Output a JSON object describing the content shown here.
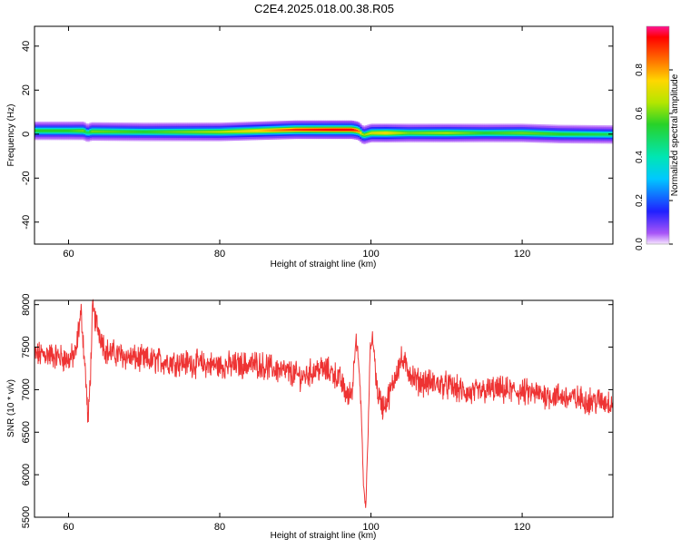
{
  "title": "C2E4.2025.018.00.38.R05",
  "chart_data": [
    {
      "type": "heatmap",
      "xlabel": "Height of straight line (km)",
      "ylabel": "Frequency (Hz)",
      "xlim": [
        55.5,
        132
      ],
      "ylim": [
        -50,
        49
      ],
      "xticks": [
        60,
        80,
        100,
        120
      ],
      "yticks": [
        -40,
        -20,
        0,
        20,
        40
      ],
      "grid": false,
      "colorbar": {
        "label": "Normalized spectral amplitude",
        "ticks": [
          "0.0",
          "0.2",
          "0.4",
          "0.6",
          "0.8"
        ],
        "range": [
          0,
          1
        ]
      },
      "ridge": {
        "x": [
          55.5,
          60,
          62,
          62.5,
          63,
          70,
          80,
          85,
          90,
          95,
          97.5,
          98.3,
          99,
          100,
          102,
          105,
          110,
          115,
          120,
          125,
          132
        ],
        "center_freq_hz": [
          1.5,
          1.5,
          1.5,
          0.5,
          1.2,
          1.0,
          1.0,
          1.5,
          2.0,
          2.0,
          2.0,
          1.5,
          -0.5,
          0.5,
          0.5,
          0.5,
          0.5,
          0.5,
          0.5,
          0.0,
          -0.2
        ],
        "peak_amplitude": [
          0.55,
          0.55,
          0.6,
          0.45,
          0.6,
          0.55,
          0.65,
          0.75,
          0.9,
          0.95,
          0.95,
          0.85,
          0.6,
          0.7,
          0.75,
          0.6,
          0.65,
          0.55,
          0.6,
          0.55,
          0.5
        ]
      }
    },
    {
      "type": "line",
      "xlabel": "Height of straight line (km)",
      "ylabel": "SNR (10 * v/v)",
      "xlim": [
        55.5,
        132
      ],
      "ylim": [
        5500,
        8050
      ],
      "xticks": [
        60,
        80,
        100,
        120
      ],
      "yticks": [
        5500,
        6000,
        6500,
        7000,
        7500,
        8000
      ],
      "color": "#ee3333",
      "grid": false,
      "x": [
        55.5,
        57,
        59,
        60,
        61,
        61.3,
        61.7,
        62.3,
        62.6,
        62.9,
        63.2,
        63.6,
        65,
        68,
        70,
        75,
        80,
        85,
        87,
        89,
        91,
        93,
        95,
        96,
        97,
        97.6,
        98.0,
        98.3,
        98.7,
        99.0,
        99.3,
        99.6,
        99.9,
        100.3,
        100.8,
        101.5,
        102,
        102.7,
        103.3,
        104,
        106,
        110,
        113,
        116,
        119,
        122,
        125,
        128,
        132
      ],
      "y": [
        7400,
        7420,
        7380,
        7350,
        7420,
        7700,
        7900,
        7100,
        6600,
        7200,
        7950,
        7800,
        7450,
        7380,
        7350,
        7320,
        7280,
        7300,
        7250,
        7200,
        7150,
        7250,
        7200,
        7100,
        6900,
        7050,
        7700,
        7400,
        6800,
        5900,
        5600,
        6400,
        7500,
        7600,
        7000,
        6800,
        6850,
        7000,
        7200,
        7350,
        7100,
        7050,
        6950,
        7000,
        6980,
        6950,
        6920,
        6880,
        6850
      ]
    }
  ]
}
